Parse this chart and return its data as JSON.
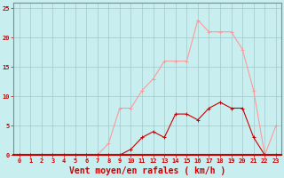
{
  "x": [
    0,
    1,
    2,
    3,
    4,
    5,
    6,
    7,
    8,
    9,
    10,
    11,
    12,
    13,
    14,
    15,
    16,
    17,
    18,
    19,
    20,
    21,
    22,
    23
  ],
  "rafales": [
    0,
    0,
    0,
    0,
    0,
    0,
    0,
    0,
    2,
    8,
    8,
    11,
    13,
    16,
    16,
    16,
    23,
    21,
    21,
    21,
    18,
    11,
    0,
    5
  ],
  "moyen": [
    0,
    0,
    0,
    0,
    0,
    0,
    0,
    0,
    0,
    0,
    1,
    3,
    4,
    3,
    7,
    7,
    6,
    8,
    9,
    8,
    8,
    3,
    0,
    0
  ],
  "line_color_rafales": "#ff9999",
  "line_color_moyen": "#cc0000",
  "bg_color": "#c8eef0",
  "grid_color": "#a0c8cc",
  "spine_color": "#888888",
  "xlabel": "Vent moyen/en rafales ( km/h )",
  "xlabel_color": "#cc0000",
  "xlabel_fontsize": 7,
  "tick_color": "#cc0000",
  "tick_fontsize": 5,
  "ylim": [
    0,
    26
  ],
  "yticks": [
    0,
    5,
    10,
    15,
    20,
    25
  ],
  "xlim": [
    -0.5,
    23.5
  ],
  "marker_size": 2.5,
  "linewidth": 0.8
}
